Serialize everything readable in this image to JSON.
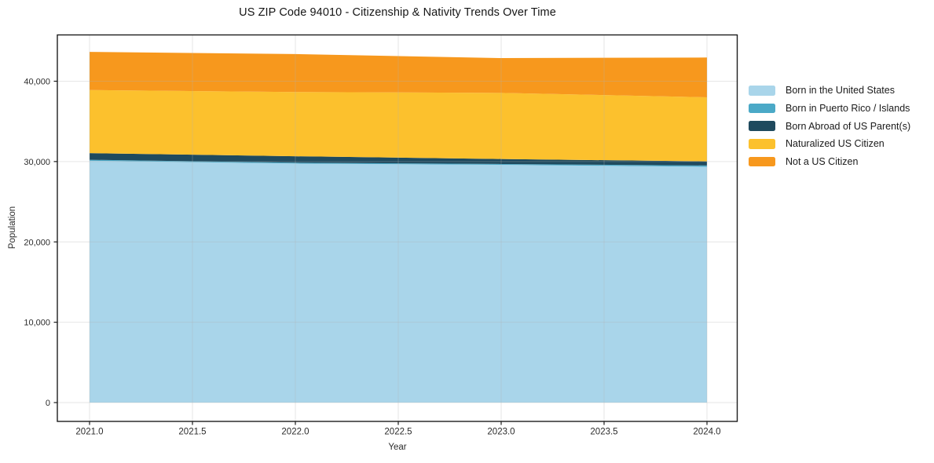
{
  "title": "US ZIP Code 94010 - Citizenship & Nativity Trends Over Time",
  "chart_data": {
    "type": "area",
    "stacked": true,
    "title": "US ZIP Code 94010 - Citizenship & Nativity Trends Over Time",
    "xlabel": "Year",
    "ylabel": "Population",
    "x": [
      2021,
      2022,
      2023,
      2024
    ],
    "series": [
      {
        "name": "Born in the United States",
        "color": "#A9D5EA",
        "values": [
          30100,
          29750,
          29600,
          29350
        ]
      },
      {
        "name": "Born in Puerto Rico / Islands",
        "color": "#4BA9C7",
        "values": [
          120,
          110,
          100,
          160
        ]
      },
      {
        "name": "Born Abroad of US Parent(s)",
        "color": "#1F4A5E",
        "values": [
          830,
          800,
          620,
          510
        ]
      },
      {
        "name": "Naturalized US Citizen",
        "color": "#FCC12D",
        "values": [
          7850,
          8000,
          8230,
          7980
        ]
      },
      {
        "name": "Not a US Citizen",
        "color": "#F7981D",
        "values": [
          4750,
          4720,
          4330,
          4950
        ]
      }
    ],
    "totals": [
      43650,
      43380,
      42880,
      42950
    ],
    "xticks": {
      "values": [
        2021.0,
        2021.5,
        2022.0,
        2022.5,
        2023.0,
        2023.5,
        2024.0
      ],
      "labels": [
        "2021.0",
        "2021.5",
        "2022.0",
        "2022.5",
        "2023.0",
        "2023.5",
        "2024.0"
      ]
    },
    "yticks": {
      "values": [
        0,
        10000,
        20000,
        30000,
        40000
      ],
      "labels": [
        "0",
        "10,000",
        "20,000",
        "30,000",
        "40,000"
      ]
    },
    "xlim": [
      2020.84,
      2024.15
    ],
    "ylim": [
      -2300,
      45800
    ],
    "grid": true,
    "legend_position": "right-outside",
    "frame_color": "#1c1c1c",
    "grid_color": "#b0b0b0",
    "background_color": "#ffffff"
  }
}
